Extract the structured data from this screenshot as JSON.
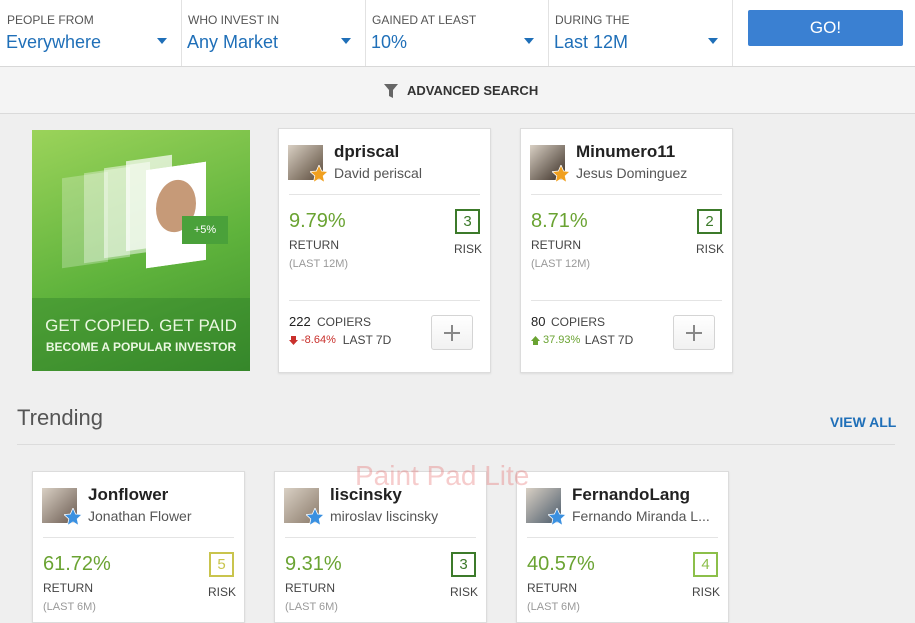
{
  "filters": [
    {
      "label": "PEOPLE FROM",
      "value": "Everywhere"
    },
    {
      "label": "WHO INVEST IN",
      "value": "Any Market"
    },
    {
      "label": "GAINED AT LEAST",
      "value": "10%"
    },
    {
      "label": "DURING THE",
      "value": "Last 12M"
    }
  ],
  "go_button": "GO!",
  "advanced_search": "ADVANCED SEARCH",
  "promo": {
    "badge": "+5%",
    "title": "GET COPIED. GET PAID",
    "subtitle": "BECOME A POPULAR INVESTOR"
  },
  "top_cards": [
    {
      "username": "dpriscal",
      "full_name": "David periscal",
      "return": "9.79%",
      "return_label": "RETURN",
      "period": "(LAST 12M)",
      "risk": "3",
      "risk_label": "RISK",
      "copiers": "222",
      "copiers_label": "COPIERS",
      "change": "-8.64%",
      "change_label": "LAST 7D"
    },
    {
      "username": "Minumero11",
      "full_name": "Jesus Dominguez",
      "return": "8.71%",
      "return_label": "RETURN",
      "period": "(LAST 12M)",
      "risk": "2",
      "risk_label": "RISK",
      "copiers": "80",
      "copiers_label": "COPIERS",
      "change": "37.93%",
      "change_label": "LAST 7D"
    }
  ],
  "trending": {
    "title": "Trending",
    "view_all": "VIEW ALL",
    "cards": [
      {
        "username": "Jonflower",
        "full_name": "Jonathan Flower",
        "return": "61.72%",
        "return_label": "RETURN",
        "period": "(LAST 6M)",
        "risk": "5",
        "risk_label": "RISK"
      },
      {
        "username": "liscinsky",
        "full_name": "miroslav liscinsky",
        "return": "9.31%",
        "return_label": "RETURN",
        "period": "(LAST 6M)",
        "risk": "3",
        "risk_label": "RISK"
      },
      {
        "username": "FernandoLang",
        "full_name": "Fernando Miranda L...",
        "return": "40.57%",
        "return_label": "RETURN",
        "period": "(LAST 6M)",
        "risk": "4",
        "risk_label": "RISK"
      }
    ]
  },
  "watermark": "Paint Pad Lite"
}
